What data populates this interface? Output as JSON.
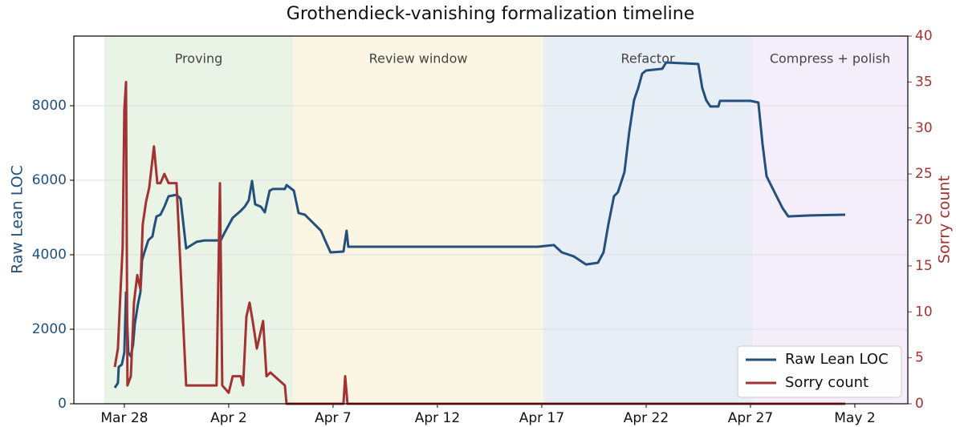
{
  "chart_data": {
    "type": "line",
    "title": "Grothendieck-vanishing formalization timeline",
    "ylabel": "Raw Lean LOC",
    "y2label": "Sorry count",
    "xlim": [
      -2.42,
      37.54
    ],
    "xticks": [
      {
        "value": 0,
        "label": "Mar 28"
      },
      {
        "value": 5,
        "label": "Apr 2"
      },
      {
        "value": 10,
        "label": "Apr 7"
      },
      {
        "value": 15,
        "label": "Apr 12"
      },
      {
        "value": 20,
        "label": "Apr 17"
      },
      {
        "value": 25,
        "label": "Apr 22"
      },
      {
        "value": 30,
        "label": "Apr 27"
      },
      {
        "value": 35,
        "label": "May 2"
      }
    ],
    "ylim": [
      0,
      9870
    ],
    "yticks": [
      0,
      2000,
      4000,
      6000,
      8000
    ],
    "y2lim": [
      0,
      40
    ],
    "y2ticks": [
      0,
      5,
      10,
      15,
      20,
      25,
      30,
      35,
      40
    ],
    "grid": true,
    "legend": "lower right",
    "regions": [
      {
        "label": "Proving",
        "start": -0.96,
        "end": 8.08,
        "color": "#e9f3e6"
      },
      {
        "label": "Review window",
        "start": 8.08,
        "end": 20.08,
        "color": "#fbf6e4"
      },
      {
        "label": "Refactor",
        "start": 20.08,
        "end": 30.08,
        "color": "#e8eef6"
      },
      {
        "label": "Compress + polish",
        "start": 30.08,
        "end": 37.54,
        "color": "#f4eefa"
      }
    ],
    "series": [
      {
        "name": "Raw Lean LOC",
        "color": "#24507c",
        "x": [
          -0.46,
          -0.31,
          -0.27,
          -0.12,
          0,
          0.08,
          0.19,
          0.31,
          0.42,
          0.5,
          0.65,
          0.77,
          0.85,
          0.96,
          1.15,
          1.35,
          1.42,
          1.54,
          1.73,
          1.92,
          2.12,
          2.5,
          2.69,
          2.96,
          3.46,
          3.85,
          4.62,
          4.81,
          5.19,
          5.58,
          5.77,
          5.96,
          6.12,
          6.27,
          6.54,
          6.73,
          6.96,
          7.12,
          7.69,
          7.77,
          8.12,
          8.35,
          8.65,
          9.42,
          9.62,
          9.88,
          10.5,
          10.65,
          10.73,
          15.19,
          19.81,
          20.58,
          20.96,
          21.54,
          22.12,
          22.69,
          22.96,
          23.19,
          23.46,
          23.65,
          23.96,
          24.19,
          24.42,
          24.62,
          24.81,
          25,
          25.77,
          25.96,
          27.5,
          27.69,
          27.88,
          28.08,
          28.46,
          28.54,
          30,
          30.38,
          30.58,
          30.77,
          31.15,
          31.54,
          31.81,
          32.88,
          34.54
        ],
        "values": [
          430,
          560,
          990,
          1054,
          1376,
          2990,
          1376,
          1270,
          1590,
          2130,
          2670,
          2990,
          3850,
          4065,
          4390,
          4495,
          4710,
          5030,
          5075,
          5290,
          5570,
          5610,
          5505,
          4170,
          4345,
          4385,
          4385,
          4600,
          4990,
          5180,
          5290,
          5460,
          5980,
          5355,
          5290,
          5140,
          5720,
          5765,
          5765,
          5870,
          5720,
          5120,
          5075,
          4645,
          4385,
          4065,
          4085,
          4645,
          4215,
          4215,
          4215,
          4260,
          4065,
          3955,
          3740,
          3785,
          4065,
          4815,
          5570,
          5680,
          6215,
          7290,
          8150,
          8475,
          8860,
          8945,
          8990,
          9160,
          9120,
          8475,
          8150,
          7980,
          7980,
          8130,
          8130,
          8085,
          6970,
          6110,
          5680,
          5250,
          5030,
          5055,
          5075
        ]
      },
      {
        "name": "Sorry count",
        "color": "#a33232",
        "axis": "y2",
        "x": [
          -0.46,
          -0.31,
          -0.19,
          -0.08,
          0,
          0.08,
          0.15,
          0.31,
          0.46,
          0.62,
          0.77,
          0.88,
          1.04,
          1.19,
          1.42,
          1.58,
          1.73,
          1.92,
          2.12,
          2.5,
          2.96,
          4.42,
          4.58,
          4.69,
          5,
          5.19,
          5.58,
          5.69,
          5.85,
          6,
          6.15,
          6.35,
          6.65,
          6.81,
          7,
          7.69,
          7.77,
          10.5,
          10.58,
          10.69,
          34.54
        ],
        "values": [
          4,
          6,
          12,
          17,
          32,
          35,
          2,
          3,
          11,
          14,
          12.5,
          19.5,
          22,
          23.5,
          28,
          24,
          24,
          25,
          24,
          24,
          2,
          2,
          24,
          2,
          1.2,
          3,
          3,
          2,
          9.5,
          11,
          9,
          6,
          9,
          3,
          3.4,
          2,
          0,
          0,
          3,
          0,
          0
        ]
      }
    ]
  }
}
